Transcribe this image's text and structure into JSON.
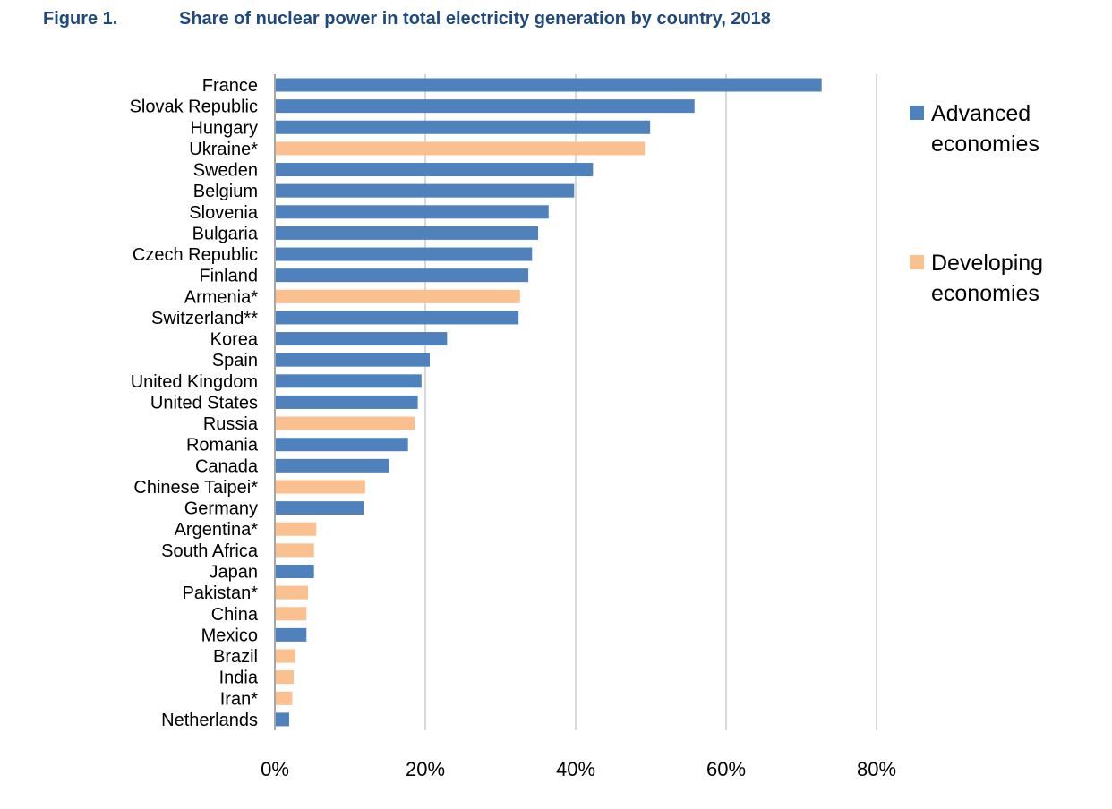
{
  "figure_label": "Figure 1.",
  "title": "Share of nuclear power in total electricity generation by country, 2018",
  "chart_data": {
    "type": "bar",
    "orientation": "horizontal",
    "title": "Share of nuclear power in total electricity generation by country, 2018",
    "xlim": [
      0,
      80
    ],
    "x_ticks": [
      "0%",
      "20%",
      "40%",
      "60%",
      "80%"
    ],
    "x_tick_values": [
      0,
      20,
      40,
      60,
      80
    ],
    "grid": "vertical",
    "legend_position": "right",
    "colors": {
      "Advanced economies": "#4f81bd",
      "Developing economies": "#fac090"
    },
    "legend": [
      {
        "name": "Advanced economies",
        "lines": [
          "Advanced",
          "economies"
        ]
      },
      {
        "name": "Developing economies",
        "lines": [
          "Developing",
          "economies"
        ]
      }
    ],
    "categories": [
      "France",
      "Slovak Republic",
      "Hungary",
      "Ukraine*",
      "Sweden",
      "Belgium",
      "Slovenia",
      "Bulgaria",
      "Czech Republic",
      "Finland",
      "Armenia*",
      "Switzerland**",
      "Korea",
      "Spain",
      "United Kingdom",
      "United States",
      "Russia",
      "Romania",
      "Canada",
      "Chinese Taipei*",
      "Germany",
      "Argentina*",
      "South Africa",
      "Japan",
      "Pakistan*",
      "China",
      "Mexico",
      "Brazil",
      "India",
      "Iran*",
      "Netherlands"
    ],
    "values": [
      72.7,
      55.8,
      49.9,
      49.2,
      42.3,
      39.8,
      36.4,
      35.0,
      34.2,
      33.7,
      32.6,
      32.4,
      22.9,
      20.6,
      19.5,
      19.0,
      18.6,
      17.7,
      15.2,
      12.0,
      11.8,
      5.5,
      5.2,
      5.2,
      4.4,
      4.2,
      4.2,
      2.7,
      2.5,
      2.3,
      1.9
    ],
    "groups": [
      "Advanced economies",
      "Advanced economies",
      "Advanced economies",
      "Developing economies",
      "Advanced economies",
      "Advanced economies",
      "Advanced economies",
      "Advanced economies",
      "Advanced economies",
      "Advanced economies",
      "Developing economies",
      "Advanced economies",
      "Advanced economies",
      "Advanced economies",
      "Advanced economies",
      "Advanced economies",
      "Developing economies",
      "Advanced economies",
      "Advanced economies",
      "Developing economies",
      "Advanced economies",
      "Developing economies",
      "Developing economies",
      "Advanced economies",
      "Developing economies",
      "Developing economies",
      "Advanced economies",
      "Developing economies",
      "Developing economies",
      "Developing economies",
      "Advanced economies"
    ]
  }
}
